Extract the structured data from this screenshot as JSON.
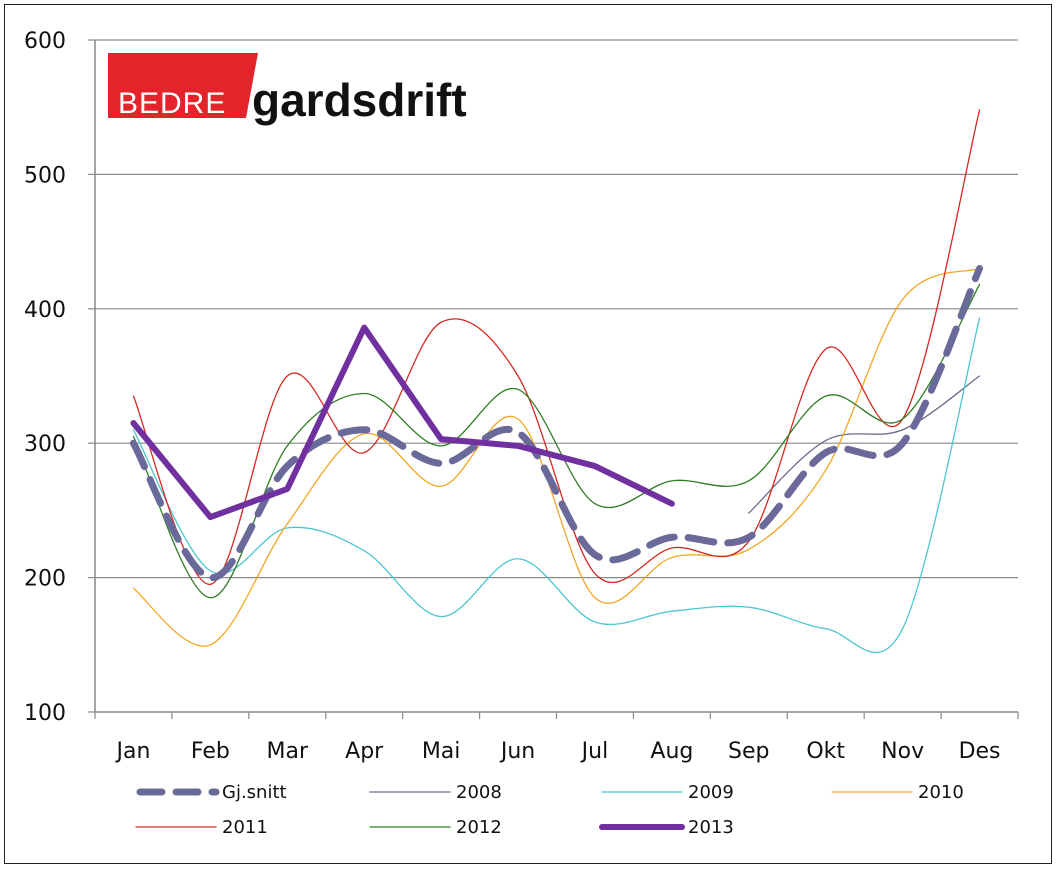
{
  "logo": {
    "part1": "BEDRE",
    "part2": "gardsdrift",
    "red": "#e3242b"
  },
  "chart_data": {
    "type": "line",
    "title": "",
    "xlabel": "",
    "ylabel": "",
    "ylim": [
      100,
      600
    ],
    "yticks": [
      100,
      200,
      300,
      400,
      500,
      600
    ],
    "grid": "horizontal",
    "legend_position": "bottom",
    "categories": [
      "Jan",
      "Feb",
      "Mar",
      "Apr",
      "Mai",
      "Jun",
      "Jul",
      "Aug",
      "Sep",
      "Okt",
      "Nov",
      "Des"
    ],
    "series": [
      {
        "name": "Gj.snitt",
        "color": "#6a6a9a",
        "style": "dashed",
        "width": 7,
        "smooth": true,
        "values": [
          300,
          200,
          283,
          310,
          285,
          308,
          217,
          230,
          230,
          293,
          300,
          430
        ]
      },
      {
        "name": "2008",
        "color": "#6b6b8c",
        "style": "solid",
        "width": 1.3,
        "smooth": true,
        "values": [
          null,
          null,
          null,
          null,
          null,
          null,
          null,
          null,
          248,
          302,
          310,
          350
        ]
      },
      {
        "name": "2009",
        "color": "#4cc6cf",
        "style": "solid",
        "width": 1.3,
        "smooth": true,
        "values": [
          310,
          205,
          237,
          220,
          171,
          214,
          167,
          175,
          178,
          162,
          162,
          393
        ]
      },
      {
        "name": "2010",
        "color": "#f2a623",
        "style": "solid",
        "width": 1.3,
        "smooth": true,
        "values": [
          192,
          150,
          240,
          307,
          268,
          318,
          185,
          215,
          221,
          280,
          407,
          430
        ]
      },
      {
        "name": "2011",
        "color": "#d42a22",
        "style": "solid",
        "width": 1.3,
        "smooth": true,
        "values": [
          335,
          195,
          350,
          293,
          390,
          350,
          203,
          222,
          227,
          370,
          318,
          548
        ]
      },
      {
        "name": "2012",
        "color": "#2e7d22",
        "style": "solid",
        "width": 1.3,
        "smooth": true,
        "values": [
          305,
          185,
          298,
          337,
          298,
          340,
          255,
          272,
          272,
          335,
          318,
          418
        ]
      },
      {
        "name": "2013",
        "color": "#7030a0",
        "style": "solid",
        "width": 6,
        "smooth": false,
        "values": [
          315,
          245,
          266,
          386,
          303,
          298,
          283,
          255,
          null,
          null,
          null,
          null
        ]
      }
    ]
  }
}
